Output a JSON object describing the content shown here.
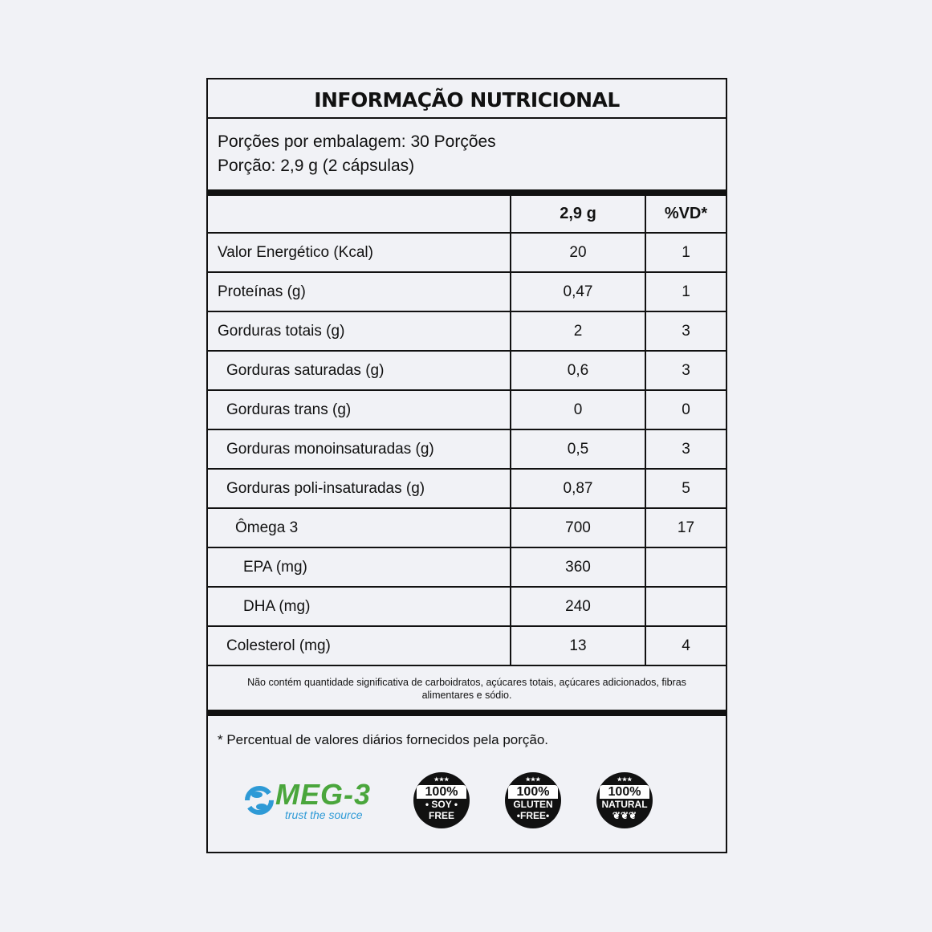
{
  "title": "INFORMAÇÃO NUTRICIONAL",
  "servings_per_pack": "Porções por embalagem: 30 Porções",
  "serving_size": "Porção: 2,9 g (2 cápsulas)",
  "header": {
    "name": "",
    "amount": "2,9 g",
    "dv": "%VD*"
  },
  "rows": [
    {
      "name": "Valor Energético (Kcal)",
      "amount": "20",
      "dv": "1",
      "level": 0
    },
    {
      "name": "Proteínas (g)",
      "amount": "0,47",
      "dv": "1",
      "level": 0
    },
    {
      "name": "Gorduras totais (g)",
      "amount": "2",
      "dv": "3",
      "level": 0
    },
    {
      "name": "Gorduras saturadas (g)",
      "amount": "0,6",
      "dv": "3",
      "level": 1
    },
    {
      "name": "Gorduras trans (g)",
      "amount": "0",
      "dv": "0",
      "level": 1
    },
    {
      "name": "Gorduras monoinsaturadas (g)",
      "amount": "0,5",
      "dv": "3",
      "level": 1
    },
    {
      "name": "Gorduras poli-insaturadas (g)",
      "amount": "0,87",
      "dv": "5",
      "level": 1
    },
    {
      "name": "Ômega 3",
      "amount": "700",
      "dv": "17",
      "level": 2
    },
    {
      "name": "EPA (mg)",
      "amount": "360",
      "dv": "",
      "level": 3
    },
    {
      "name": "DHA (mg)",
      "amount": "240",
      "dv": "",
      "level": 3
    },
    {
      "name": "Colesterol (mg)",
      "amount": "13",
      "dv": "4",
      "level": 1
    }
  ],
  "note": "Não contém quantidade significativa de carboidratos, açúcares totais, açúcares adicionados, fibras alimentares e sódio.",
  "footnote": "* Percentual de valores diários fornecidos pela porção.",
  "logos": {
    "meg3": {
      "name": "MEG-3",
      "tagline": "trust the source",
      "icon": "fish-icon"
    },
    "badges": [
      {
        "pct": "100%",
        "label": "• SOY •",
        "label2": "FREE"
      },
      {
        "pct": "100%",
        "label": "GLUTEN",
        "label2": "•FREE•"
      },
      {
        "pct": "100%",
        "label": "NATURAL",
        "label2": "❦❦❦"
      }
    ]
  },
  "colors": {
    "background": "#f1f2f6",
    "meg_green": "#4aa63c",
    "meg_blue": "#2e9ad6"
  }
}
